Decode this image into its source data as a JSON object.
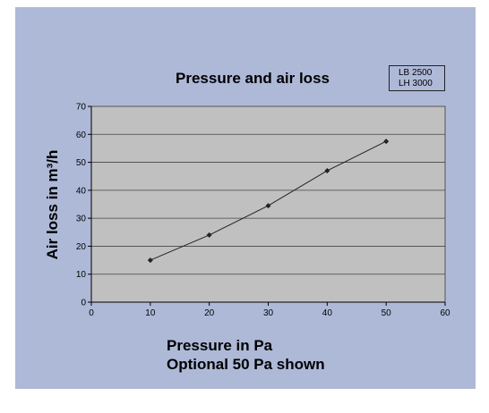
{
  "chart_data": {
    "type": "scatter",
    "title": "Pressure and air loss",
    "xlabel_lines": [
      "Pressure in Pa",
      "Optional 50 Pa shown"
    ],
    "ylabel": "Air loss in m³/h",
    "xlim": [
      0,
      60
    ],
    "ylim": [
      0,
      70
    ],
    "x_ticks": [
      0,
      10,
      20,
      30,
      40,
      50,
      60
    ],
    "y_ticks": [
      0,
      10,
      20,
      30,
      40,
      50,
      60,
      70
    ],
    "grid": "horizontal",
    "legend": [
      "LB 2500",
      "LH 3000"
    ],
    "legend_position": "top-right",
    "series": [
      {
        "x": [
          10,
          20,
          30,
          40,
          50
        ],
        "y": [
          15,
          24,
          34.5,
          47,
          57.5
        ],
        "marker": "diamond",
        "line": true
      }
    ],
    "colors": {
      "background": "#aeb9d8",
      "plot_area": "#c0c0c0",
      "line": "#222222"
    }
  }
}
